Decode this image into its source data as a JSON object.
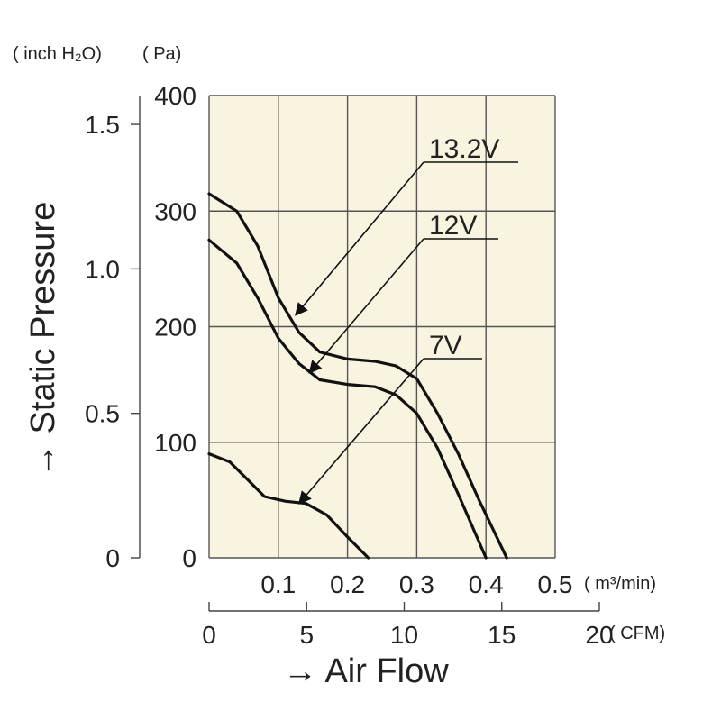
{
  "chart_data": {
    "type": "line",
    "title": "",
    "ylabel": "→ Static Pressure",
    "xlabel": "→ Air Flow",
    "pressure_unit_pa": "( Pa)",
    "pressure_unit_inch": "( inch H₂O)",
    "flow_unit_m3": "( m³/min)",
    "flow_unit_cfm": "( CFM)",
    "x_m3min": {
      "ticks": [
        "0.1",
        "0.2",
        "0.3",
        "0.4",
        "0.5"
      ],
      "range": [
        0,
        0.5
      ]
    },
    "x_cfm": {
      "ticks": [
        "0",
        "5",
        "10",
        "15",
        "20"
      ],
      "range": [
        0,
        20
      ]
    },
    "y_pa": {
      "ticks": [
        "0",
        "100",
        "200",
        "300",
        "400"
      ],
      "range": [
        0,
        400
      ]
    },
    "y_inch": {
      "ticks": [
        "0",
        "0.5",
        "1.0",
        "1.5"
      ],
      "range": [
        0,
        1.6
      ]
    },
    "grid": true,
    "series": [
      {
        "name": "13.2V",
        "x": [
          0,
          0.04,
          0.07,
          0.1,
          0.13,
          0.16,
          0.2,
          0.24,
          0.27,
          0.3,
          0.33,
          0.36,
          0.39,
          0.43
        ],
        "y": [
          315,
          300,
          270,
          225,
          195,
          178,
          172,
          170,
          166,
          155,
          125,
          90,
          50,
          0
        ]
      },
      {
        "name": "12V",
        "x": [
          0,
          0.04,
          0.07,
          0.1,
          0.13,
          0.16,
          0.2,
          0.24,
          0.27,
          0.3,
          0.33,
          0.36,
          0.4
        ],
        "y": [
          275,
          255,
          225,
          190,
          168,
          154,
          150,
          148,
          141,
          125,
          95,
          55,
          0
        ]
      },
      {
        "name": "7V",
        "x": [
          0,
          0.03,
          0.06,
          0.08,
          0.11,
          0.14,
          0.17,
          0.2,
          0.23
        ],
        "y": [
          90,
          83,
          65,
          53,
          49,
          47,
          37,
          18,
          0
        ]
      }
    ]
  }
}
